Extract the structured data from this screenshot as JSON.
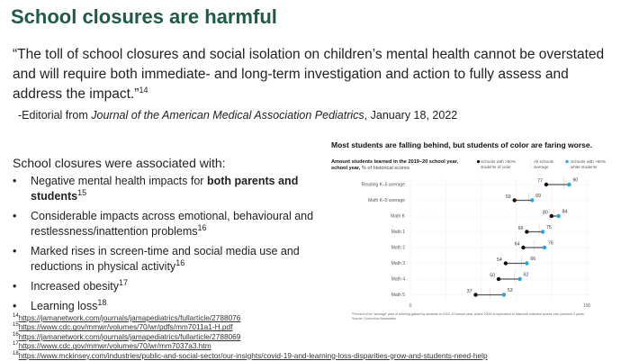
{
  "title": "School closures are harmful",
  "quote": {
    "text": "“The toll of school closures and social isolation on children’s mental health cannot be overstated and will require both immediate- and long-term investigation and action to fully assess and address the impact.”",
    "ref": "14"
  },
  "editorial": {
    "prefix": "-Editorial from ",
    "journal": "Journal of the American Medical Association Pediatrics",
    "suffix": ", January 18, 2022"
  },
  "intro": "School closures were associated with:",
  "bullets": [
    {
      "text": "Negative mental health impacts for ",
      "bold": "both parents and students",
      "ref": "15"
    },
    {
      "text": "Considerable impacts across emotional, behavioural and restlessness/inattention problems",
      "ref": "16"
    },
    {
      "text": "Marked rises in screen-time and social media use and reductions in physical activity",
      "ref": "16"
    },
    {
      "text": "Increased obesity",
      "ref": "17"
    },
    {
      "text": "Learning loss",
      "ref": "18"
    }
  ],
  "references": [
    {
      "n": "14",
      "url": "https://jamanetwork.com/journals/jamapediatrics/fullarticle/2788076"
    },
    {
      "n": "15",
      "url": "https://www.cdc.gov/mmwr/volumes/70/wr/pdfs/mm7011a1-H.pdf"
    },
    {
      "n": "16",
      "url": "https://jamanetwork.com/journals/jamapediatrics/fullarticle/2788069"
    },
    {
      "n": "17",
      "url": "https://www.cdc.gov/mmwr/volumes/70/wr/mm7037a3.htm"
    },
    {
      "n": "18",
      "url": "https://www.mckinsey.com/industries/public-and-social-sector/our-insights/covid-19-and-learning-loss-disparities-grow-and-students-need-help"
    }
  ],
  "chart_data": {
    "type": "dumbbell",
    "title": "Most students are falling behind, but students of color are faring worse.",
    "subtitle_bold": "Amount students learned in the 2019–20 school year,",
    "subtitle": " % of historical scores",
    "subtitle_ref": "1",
    "legend": [
      "Schools with >50% students of color",
      "All schools average",
      "Schools with >50% white students"
    ],
    "colors": {
      "students_of_color": "#111111",
      "white_students": "#1fa3e8",
      "average": "#bbbbbb",
      "title": "#1e5a47"
    },
    "categories": [
      "Reading K–5 average",
      "Math K–5 average",
      "Math K",
      "Math 1",
      "Math 2",
      "Math 3",
      "Math 4",
      "Math 5"
    ],
    "series": [
      {
        "name": "Schools with >50% students of color",
        "values": [
          77,
          59,
          80,
          66,
          64,
          54,
          50,
          37
        ]
      },
      {
        "name": "Schools with >50% white students",
        "values": [
          90,
          69,
          84,
          75,
          76,
          66,
          62,
          53
        ]
      },
      {
        "name": "All schools average",
        "values": [
          87,
          67,
          79,
          73,
          70,
          63,
          59,
          45
        ]
      }
    ],
    "xlim": [
      0,
      100
    ],
    "xticks": [
      "0",
      "100"
    ],
    "footnote": "¹Percent of an “average” year of learning gained by students in 2019–20 school year, where 100% is equivalent to historical matched scores over previous 3 years.",
    "source": "Source: Curriculum Associates"
  }
}
